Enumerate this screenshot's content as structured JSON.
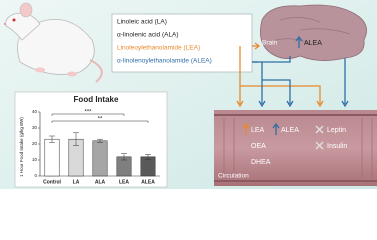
{
  "chart_data": {
    "type": "bar",
    "title": "Food Intake",
    "y_label": "1 Hour Food Intake (g/kg BW)",
    "categories": [
      "Control",
      "LA",
      "ALA",
      "LEA",
      "ALEA"
    ],
    "values": [
      23,
      23,
      22,
      12,
      12
    ],
    "errors": [
      2,
      4,
      1,
      2,
      1.5
    ],
    "colors": [
      "#ffffff",
      "#d9d9d9",
      "#a6a6a6",
      "#7f7f7f",
      "#595959"
    ],
    "ylim": [
      0,
      40
    ],
    "yticks": [
      0,
      10,
      20,
      30,
      40
    ],
    "annotations": [
      "***",
      "**"
    ]
  },
  "diagram": {
    "compounds": [
      "Linoleic acid (LA)",
      "α-linolenic acid (ALA)",
      "Linoleoylethanolamide (LEA)",
      "α-linolenoylethanolamide (ALEA)"
    ],
    "brain": {
      "label": "Brain",
      "finding": "ALEA"
    },
    "circulation": {
      "label": "Circulation",
      "increased": [
        "LEA",
        "ALEA"
      ],
      "other": [
        "OEA",
        "DHEA"
      ],
      "unchanged": [
        "Leptin",
        "Insulin"
      ]
    }
  }
}
